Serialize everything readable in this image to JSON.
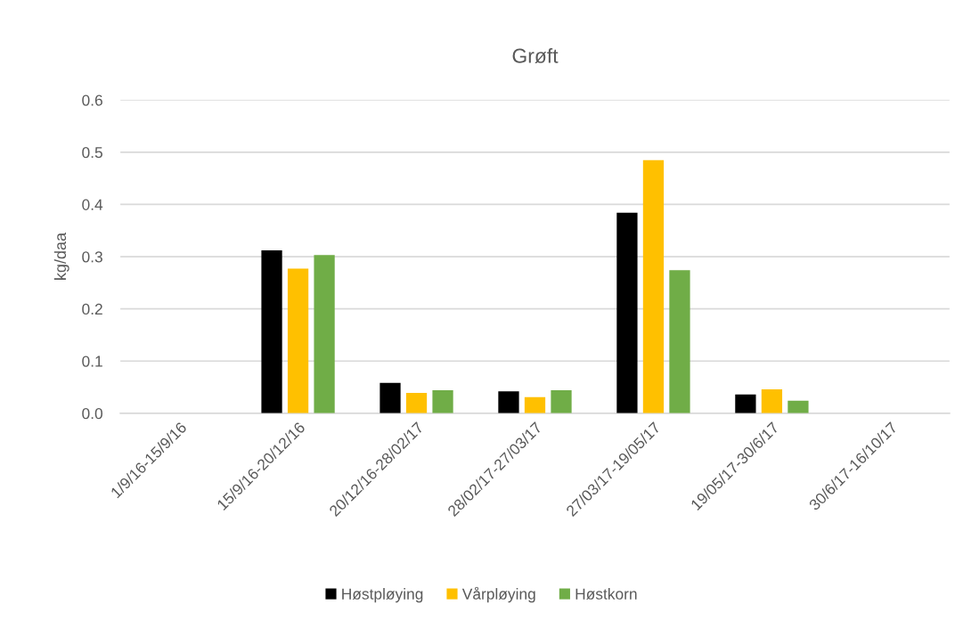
{
  "chart_data": {
    "type": "bar",
    "title": "Grøft",
    "ylabel": "kg/daa",
    "categories": [
      "1/9/16-15/9/16",
      "15/9/16-20/12/16",
      "20/12/16-28/02/17",
      "28/02/17-27/03/17",
      "27/03/17-19/05/17",
      "19/05/17-30/6/17",
      "30/6/17-16/10/17"
    ],
    "series": [
      {
        "name": "Høstpløying",
        "color": "#000000",
        "values": [
          null,
          0.312,
          0.058,
          0.042,
          0.384,
          0.036,
          null
        ]
      },
      {
        "name": "Vårpløying",
        "color": "#ffc000",
        "values": [
          null,
          0.277,
          0.039,
          0.031,
          0.485,
          0.046,
          null
        ]
      },
      {
        "name": "Høstkorn",
        "color": "#70ad47",
        "values": [
          null,
          0.303,
          0.044,
          0.044,
          0.274,
          0.024,
          null
        ]
      }
    ],
    "ylim": [
      0,
      0.6
    ],
    "yticks": [
      {
        "value": 0,
        "label": "0.0"
      },
      0.1,
      0.2,
      0.3,
      0.4,
      0.5,
      0.6
    ],
    "grid": "y",
    "legend": "bottom"
  }
}
